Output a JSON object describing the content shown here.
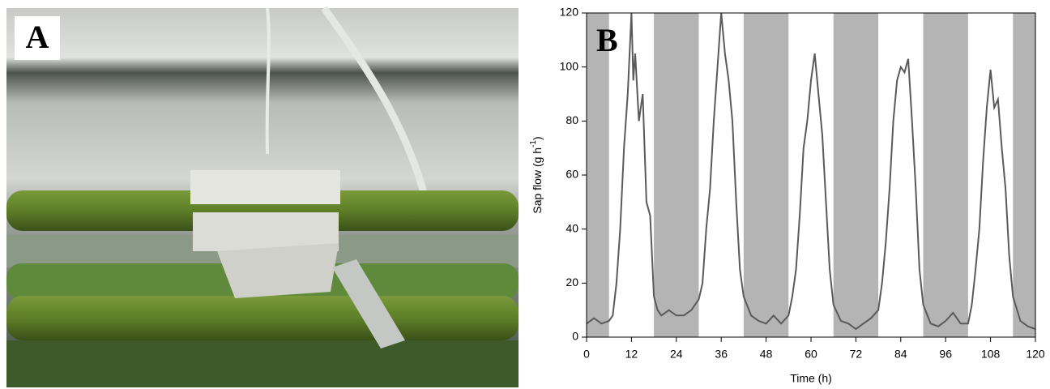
{
  "panel_a": {
    "label": "A"
  },
  "chart_data": {
    "type": "line",
    "label": "B",
    "x_label": "Time (h)",
    "y_label": [
      "Sap flow (g h",
      "-1",
      ")"
    ],
    "x": [
      0,
      2,
      4,
      6,
      7,
      8,
      9,
      10,
      11,
      12,
      12.5,
      13,
      14,
      15,
      16,
      17,
      18,
      19,
      20,
      22,
      24,
      26,
      28,
      30,
      31,
      32,
      33,
      34,
      35,
      36,
      37,
      38,
      39,
      40,
      41,
      42,
      44,
      46,
      48,
      50,
      52,
      54,
      55,
      56,
      57,
      58,
      59,
      60,
      61,
      62,
      63,
      64,
      65,
      66,
      68,
      70,
      72,
      74,
      76,
      78,
      79,
      80,
      81,
      82,
      83,
      84,
      85,
      86,
      87,
      88,
      89,
      90,
      92,
      94,
      96,
      98,
      100,
      102,
      103,
      104,
      105,
      106,
      107,
      108,
      109,
      110,
      111,
      112,
      113,
      114,
      116,
      118,
      120
    ],
    "values": [
      5,
      7,
      5,
      6,
      8,
      20,
      40,
      70,
      90,
      120,
      95,
      105,
      80,
      90,
      50,
      45,
      15,
      10,
      8,
      10,
      8,
      8,
      10,
      14,
      20,
      40,
      55,
      80,
      100,
      120,
      105,
      95,
      80,
      50,
      25,
      15,
      8,
      6,
      5,
      8,
      5,
      8,
      15,
      25,
      45,
      70,
      80,
      95,
      105,
      90,
      75,
      50,
      25,
      12,
      6,
      5,
      3,
      5,
      7,
      10,
      20,
      35,
      55,
      80,
      95,
      100,
      98,
      103,
      80,
      55,
      25,
      12,
      5,
      4,
      6,
      9,
      5,
      5,
      12,
      25,
      40,
      65,
      85,
      99,
      85,
      88,
      70,
      55,
      30,
      15,
      6,
      4,
      3
    ],
    "color": "#5a5a5a",
    "shaded_intervals": [
      [
        0,
        6
      ],
      [
        18,
        30
      ],
      [
        42,
        54
      ],
      [
        66,
        78
      ],
      [
        90,
        102
      ],
      [
        114,
        120
      ]
    ],
    "shade_color": "#b4b4b4",
    "xlim": [
      0,
      120
    ],
    "ylim": [
      0,
      120
    ],
    "xticks": [
      0,
      12,
      24,
      36,
      48,
      60,
      72,
      84,
      96,
      108,
      120
    ],
    "yticks": [
      0,
      20,
      40,
      60,
      80,
      100,
      120
    ]
  }
}
